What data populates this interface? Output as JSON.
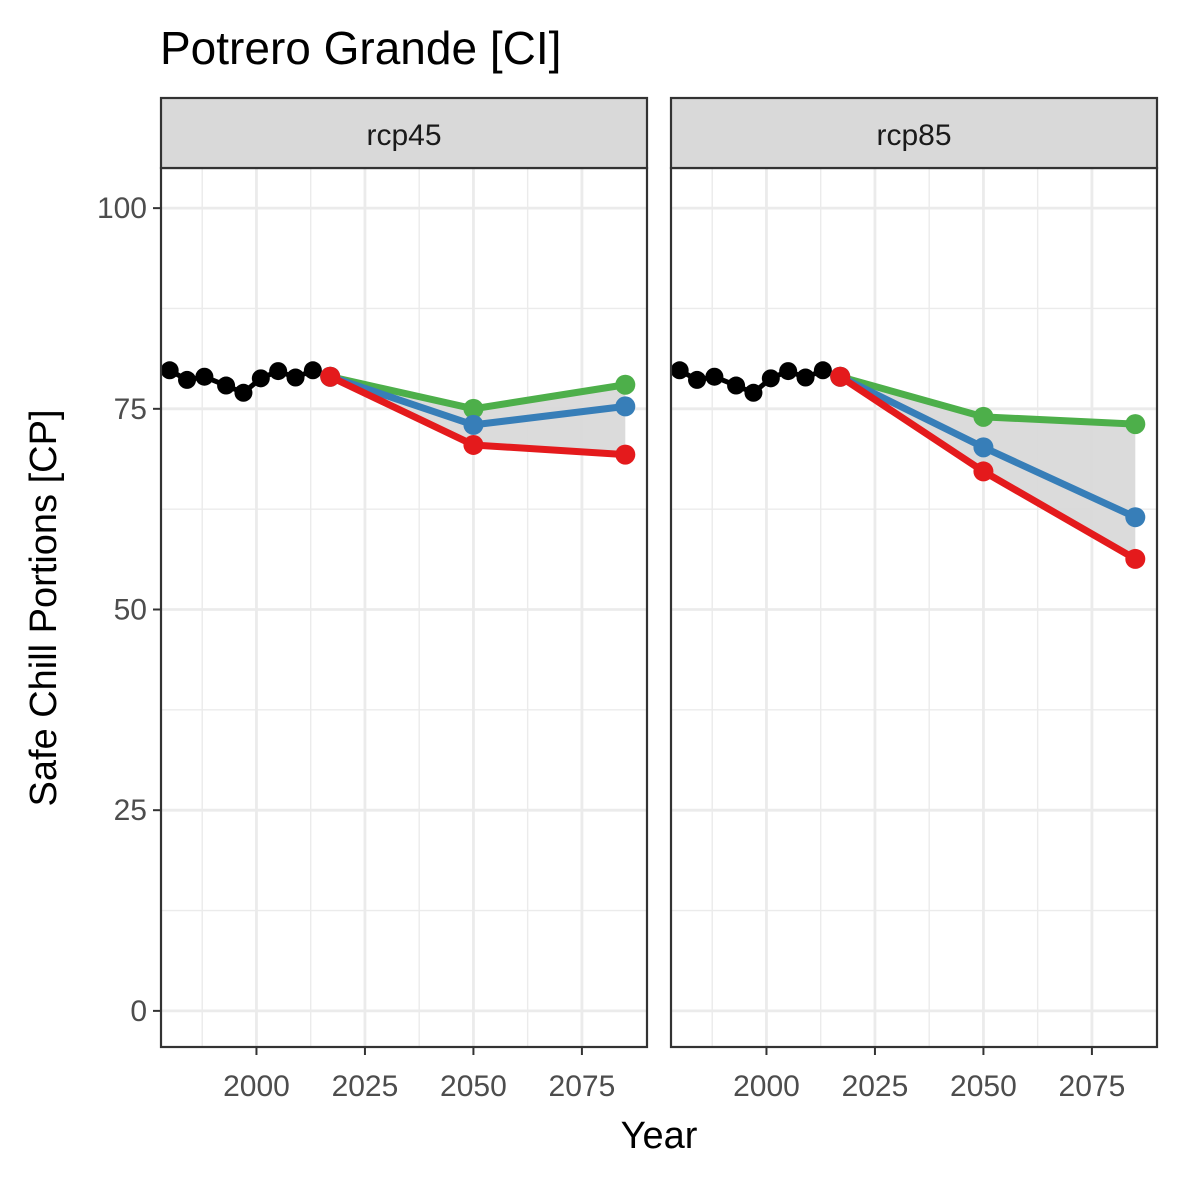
{
  "chart_data": {
    "type": "line",
    "title": "Potrero Grande [CI]",
    "xlabel": "Year",
    "ylabel": "Safe Chill Portions [CP]",
    "xlim": [
      1978,
      2090
    ],
    "ylim": [
      -4.5,
      105
    ],
    "x_ticks": [
      2000,
      2025,
      2050,
      2075
    ],
    "y_ticks": [
      0,
      25,
      50,
      75,
      100
    ],
    "grid": true,
    "legend": "none",
    "colors": {
      "historic": "#000000",
      "low": "#e41a1c",
      "median": "#377eb8",
      "high": "#4daf4a",
      "ribbon": "#d9d9d9"
    },
    "panels": [
      {
        "label": "rcp45",
        "historic": {
          "x": [
            1980,
            1984,
            1988,
            1993,
            1997,
            2001,
            2005,
            2009,
            2013
          ],
          "y": [
            79.8,
            78.6,
            79.0,
            77.9,
            77.0,
            78.8,
            79.7,
            78.9,
            79.8
          ]
        },
        "series": [
          {
            "key": "high",
            "x": [
              2017,
              2050,
              2085
            ],
            "y": [
              79.0,
              75.0,
              78.0
            ]
          },
          {
            "key": "median",
            "x": [
              2017,
              2050,
              2085
            ],
            "y": [
              79.0,
              73.0,
              75.3
            ]
          },
          {
            "key": "low",
            "x": [
              2017,
              2050,
              2085
            ],
            "y": [
              79.0,
              70.5,
              69.3
            ]
          }
        ]
      },
      {
        "label": "rcp85",
        "historic": {
          "x": [
            1980,
            1984,
            1988,
            1993,
            1997,
            2001,
            2005,
            2009,
            2013
          ],
          "y": [
            79.8,
            78.6,
            79.0,
            77.9,
            77.0,
            78.8,
            79.7,
            78.9,
            79.8
          ]
        },
        "series": [
          {
            "key": "high",
            "x": [
              2017,
              2050,
              2085
            ],
            "y": [
              79.0,
              74.0,
              73.1
            ]
          },
          {
            "key": "median",
            "x": [
              2017,
              2050,
              2085
            ],
            "y": [
              79.0,
              70.2,
              61.5
            ]
          },
          {
            "key": "low",
            "x": [
              2017,
              2050,
              2085
            ],
            "y": [
              79.0,
              67.2,
              56.3
            ]
          }
        ]
      }
    ]
  }
}
